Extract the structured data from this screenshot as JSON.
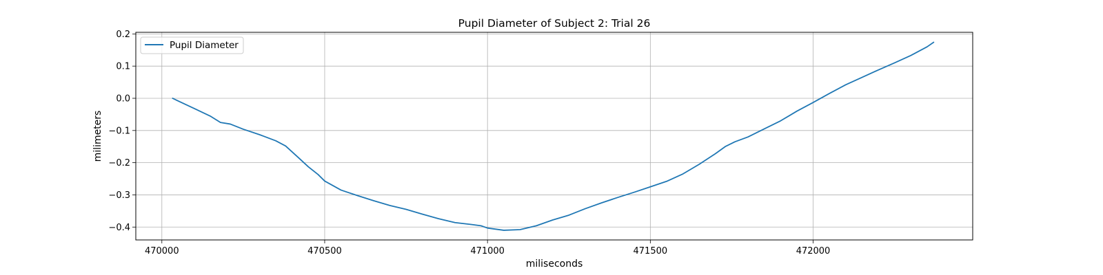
{
  "chart_data": {
    "type": "line",
    "title": "Pupil Diameter of Subject 2: Trial 26",
    "xlabel": "miliseconds",
    "ylabel": "milimeters",
    "xlim": [
      469920,
      472490
    ],
    "ylim": [
      -0.44,
      0.205
    ],
    "xticks": [
      470000,
      470500,
      471000,
      471500,
      472000
    ],
    "yticks": [
      -0.4,
      -0.3,
      -0.2,
      -0.1,
      0.0,
      0.1,
      0.2
    ],
    "ytick_labels": [
      "−0.4",
      "−0.3",
      "−0.2",
      "−0.1",
      "0.0",
      "0.1",
      "0.2"
    ],
    "grid": true,
    "legend": {
      "position": "top-left",
      "entries": [
        "Pupil Diameter"
      ]
    },
    "series_color": "#1f77b4",
    "series": [
      {
        "name": "Pupil Diameter",
        "x": [
          470033,
          470060,
          470100,
          470150,
          470180,
          470210,
          470250,
          470300,
          470350,
          470380,
          470420,
          470450,
          470480,
          470500,
          470550,
          470600,
          470650,
          470700,
          470750,
          470800,
          470850,
          470900,
          470950,
          470980,
          471000,
          471050,
          471100,
          471150,
          471200,
          471250,
          471300,
          471350,
          471400,
          471450,
          471500,
          471550,
          471600,
          471650,
          471700,
          471730,
          471760,
          471800,
          471850,
          471900,
          471950,
          472000,
          472050,
          472100,
          472150,
          472200,
          472250,
          472300,
          472350,
          472370
        ],
        "y": [
          0.0,
          -0.013,
          -0.032,
          -0.056,
          -0.075,
          -0.08,
          -0.096,
          -0.113,
          -0.132,
          -0.148,
          -0.185,
          -0.213,
          -0.237,
          -0.257,
          -0.285,
          -0.302,
          -0.318,
          -0.333,
          -0.345,
          -0.36,
          -0.374,
          -0.386,
          -0.392,
          -0.396,
          -0.403,
          -0.41,
          -0.408,
          -0.396,
          -0.378,
          -0.363,
          -0.343,
          -0.325,
          -0.308,
          -0.292,
          -0.275,
          -0.258,
          -0.235,
          -0.205,
          -0.172,
          -0.15,
          -0.135,
          -0.12,
          -0.095,
          -0.07,
          -0.04,
          -0.013,
          0.015,
          0.042,
          0.065,
          0.088,
          0.11,
          0.133,
          0.16,
          0.174
        ]
      }
    ]
  }
}
